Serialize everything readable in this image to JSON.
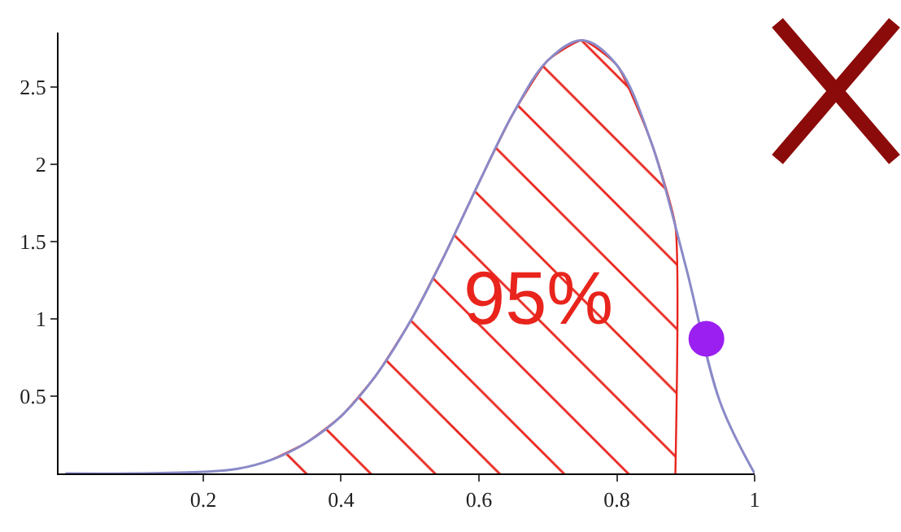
{
  "chart_data": {
    "type": "line",
    "x": [
      0,
      0.1,
      0.2,
      0.25,
      0.3,
      0.35,
      0.4,
      0.45,
      0.5,
      0.55,
      0.6,
      0.65,
      0.7,
      0.75,
      0.8,
      0.85,
      0.9,
      0.95,
      1.0
    ],
    "series": [
      {
        "color": "#8a8ac8",
        "values": [
          0,
          0,
          0.01,
          0.03,
          0.09,
          0.2,
          0.37,
          0.63,
          0.98,
          1.41,
          1.88,
          2.33,
          2.67,
          2.8,
          2.64,
          2.14,
          1.34,
          0.46,
          0
        ]
      },
      {
        "type": "area",
        "color": "#e8241c",
        "x": [
          0.3,
          0.35,
          0.4,
          0.45,
          0.5,
          0.55,
          0.6,
          0.65,
          0.7,
          0.75,
          0.8,
          0.85,
          0.885,
          0.885
        ],
        "values": [
          0.09,
          0.2,
          0.37,
          0.63,
          0.98,
          1.41,
          1.88,
          2.33,
          2.67,
          2.8,
          2.64,
          2.14,
          1.6,
          0
        ]
      },
      {
        "type": "scatter",
        "color": "#9a1ff0",
        "marker": "circle",
        "x": [
          0.93
        ],
        "values": [
          0.87
        ]
      }
    ],
    "annotations": [
      "95%"
    ],
    "xlim": [
      -0.01,
      1.0
    ],
    "ylim": [
      0,
      2.85
    ],
    "xticks": [
      0.2,
      0.4,
      0.6,
      0.8,
      1.0
    ],
    "yticks": [
      0.5,
      1.0,
      1.5,
      2.0,
      2.5
    ],
    "grid": false,
    "legend": false
  }
}
